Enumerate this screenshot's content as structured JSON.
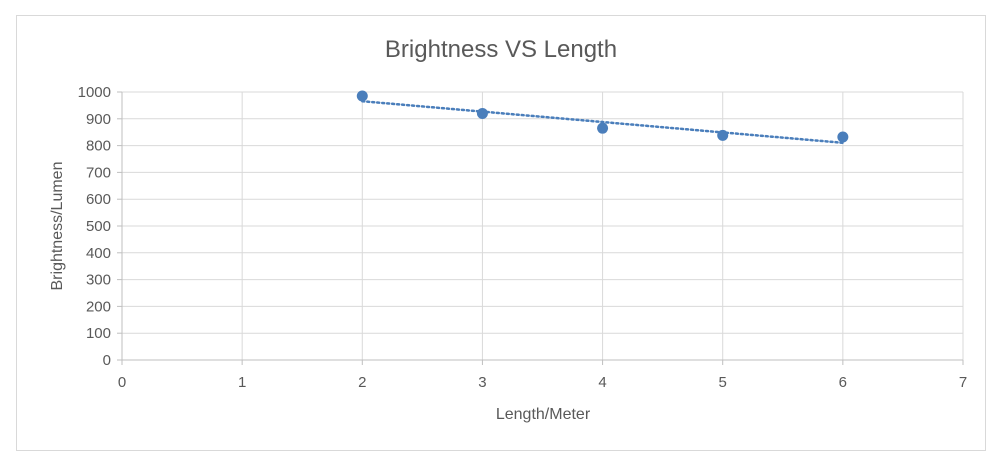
{
  "chart_data": {
    "type": "scatter",
    "title": "Brightness VS Length",
    "xlabel": "Length/Meter",
    "ylabel": "Brightness/Lumen",
    "xlim": [
      0,
      7
    ],
    "ylim": [
      0,
      1000
    ],
    "x_ticks": [
      "0",
      "1",
      "2",
      "3",
      "4",
      "5",
      "6",
      "7"
    ],
    "y_ticks": [
      "0",
      "100",
      "200",
      "300",
      "400",
      "500",
      "600",
      "700",
      "800",
      "900",
      "1000"
    ],
    "grid": true,
    "legend": "none",
    "series": [
      {
        "x": [
          2,
          3,
          4,
          5,
          6
        ],
        "y": [
          985,
          920,
          865,
          838,
          832
        ],
        "color": "#4a7ebb",
        "trendline": {
          "type": "linear",
          "style": "dotted"
        }
      }
    ]
  }
}
